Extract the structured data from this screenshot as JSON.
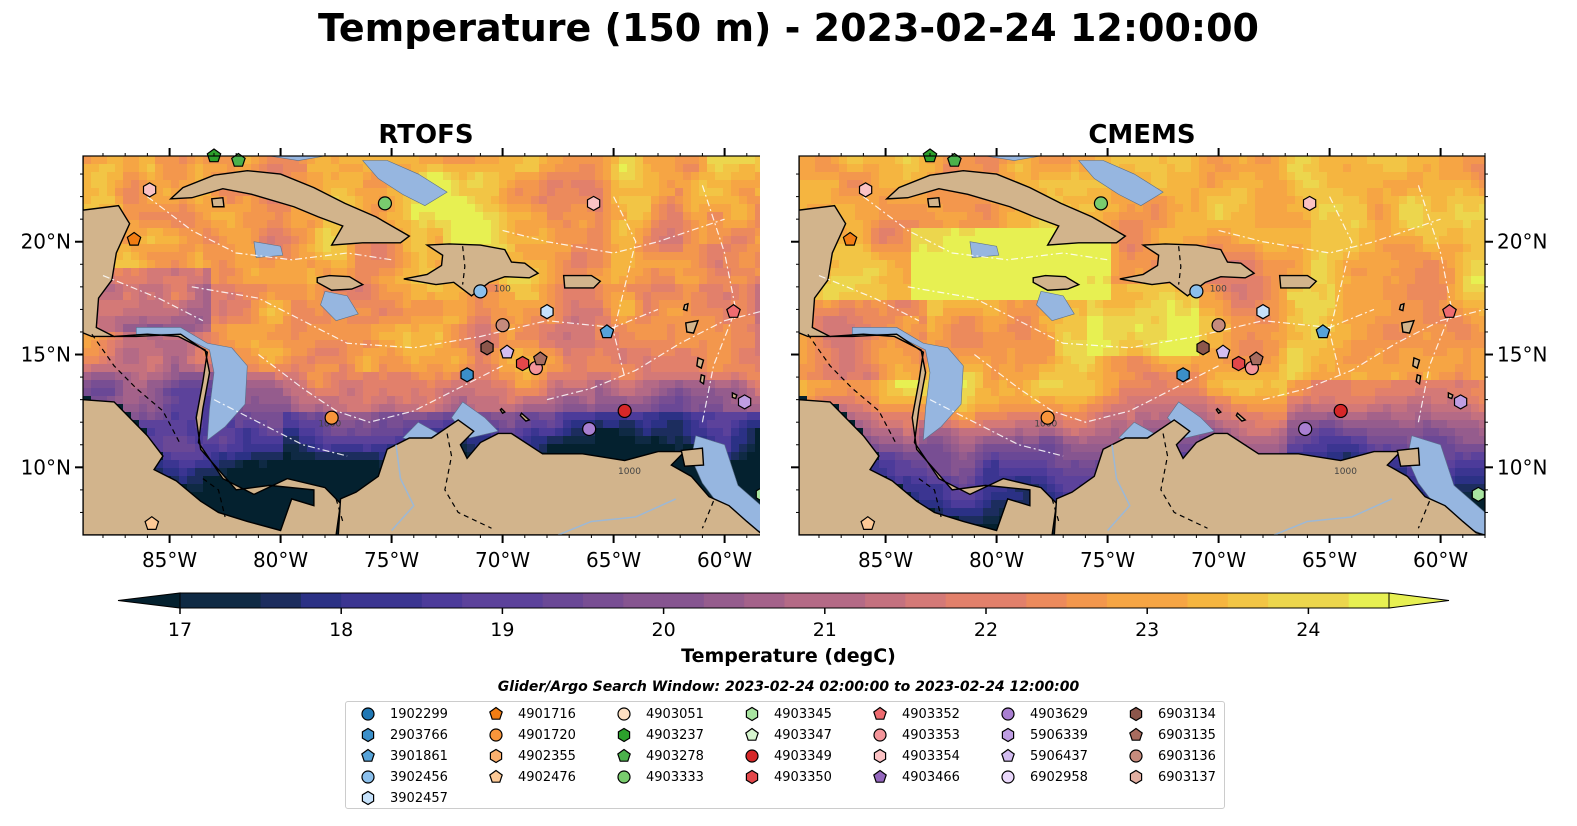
{
  "title": "Temperature (150 m) - 2023-02-24 12:00:00",
  "panels": [
    {
      "title": "RTOFS"
    },
    {
      "title": "CMEMS"
    }
  ],
  "chart_data": [
    {
      "type": "heatmap",
      "title": "RTOFS",
      "x_ticks": [
        "85°W",
        "80°W",
        "75°W",
        "70°W",
        "65°W",
        "60°W"
      ],
      "x_tick_values": [
        -85,
        -80,
        -75,
        -70,
        -65,
        -60
      ],
      "y_ticks": [
        "20°N",
        "15°N",
        "10°N"
      ],
      "y_tick_values": [
        20,
        15,
        10
      ],
      "xlim": [
        -88.9,
        -58
      ],
      "ylim": [
        7,
        23.8
      ],
      "contour_labels": [
        "1000",
        "100"
      ]
    },
    {
      "type": "heatmap",
      "title": "CMEMS",
      "x_ticks": [
        "85°W",
        "80°W",
        "75°W",
        "70°W",
        "65°W",
        "60°W"
      ],
      "x_tick_values": [
        -85,
        -80,
        -75,
        -70,
        -65,
        -60
      ],
      "y_ticks": [
        "20°N",
        "15°N",
        "10°N"
      ],
      "y_tick_values": [
        20,
        15,
        10
      ],
      "xlim": [
        -88.9,
        -58
      ],
      "ylim": [
        7,
        23.8
      ],
      "contour_labels": [
        "1000",
        "100"
      ]
    }
  ],
  "colorbar": {
    "label": "Temperature (degC)",
    "min": 16.75,
    "max": 24.5,
    "step": 0.25,
    "ticks": [
      "17",
      "18",
      "19",
      "20",
      "21",
      "22",
      "23",
      "24"
    ],
    "tick_values": [
      17,
      18,
      19,
      20,
      21,
      22,
      23,
      24
    ],
    "extend": "both",
    "colors": [
      "#04212f",
      "#0f2a44",
      "#1c2d5e",
      "#2b3185",
      "#3b3591",
      "#4c3b9a",
      "#5c429b",
      "#6a4896",
      "#784e93",
      "#865590",
      "#955c8d",
      "#a4628a",
      "#b46a86",
      "#c4717f",
      "#d47977",
      "#e2806b",
      "#ec8a5c",
      "#f3974d",
      "#f6a544",
      "#f5b540",
      "#f2c545",
      "#ecd64d",
      "#e7f052"
    ]
  },
  "legend": {
    "title": "Glider/Argo Search Window: 2023-02-24 02:00:00 to 2023-02-24 12:00:00",
    "columns": [
      [
        {
          "label": "1902299",
          "marker": "circle",
          "color": "#1f77b4"
        },
        {
          "label": "2903766",
          "marker": "hexagon",
          "color": "#3b8fc9"
        },
        {
          "label": "3901861",
          "marker": "pentagon",
          "color": "#57a3d8"
        },
        {
          "label": "3902456",
          "marker": "circle",
          "color": "#8cc0ec"
        },
        {
          "label": "3902457",
          "marker": "hexagon",
          "color": "#c6e2fb"
        }
      ],
      [
        {
          "label": "4901716",
          "marker": "pentagon",
          "color": "#f27d13"
        },
        {
          "label": "4901720",
          "marker": "circle",
          "color": "#f8953b"
        },
        {
          "label": "4902355",
          "marker": "hexagon",
          "color": "#fbb06e"
        },
        {
          "label": "4902476",
          "marker": "pentagon",
          "color": "#fdc996"
        }
      ],
      [
        {
          "label": "4903051",
          "marker": "circle",
          "color": "#fde0c3"
        },
        {
          "label": "4903237",
          "marker": "hexagon",
          "color": "#2ca02c"
        },
        {
          "label": "4903278",
          "marker": "pentagon",
          "color": "#4bb14b"
        },
        {
          "label": "4903333",
          "marker": "circle",
          "color": "#79cc6e"
        }
      ],
      [
        {
          "label": "4903345",
          "marker": "hexagon",
          "color": "#a8e4a0"
        },
        {
          "label": "4903347",
          "marker": "pentagon",
          "color": "#d7f5cf"
        },
        {
          "label": "4903349",
          "marker": "circle",
          "color": "#d62728"
        },
        {
          "label": "4903350",
          "marker": "hexagon",
          "color": "#e3474a"
        }
      ],
      [
        {
          "label": "4903352",
          "marker": "pentagon",
          "color": "#ee6b70"
        },
        {
          "label": "4903353",
          "marker": "circle",
          "color": "#f4959a"
        },
        {
          "label": "4903354",
          "marker": "hexagon",
          "color": "#fbc2c4"
        },
        {
          "label": "4903466",
          "marker": "pentagon",
          "color": "#9467bd"
        }
      ],
      [
        {
          "label": "4903629",
          "marker": "circle",
          "color": "#a97fd1"
        },
        {
          "label": "5906339",
          "marker": "hexagon",
          "color": "#bf9ee3"
        },
        {
          "label": "5906437",
          "marker": "pentagon",
          "color": "#d3bdf0"
        },
        {
          "label": "6902958",
          "marker": "circle",
          "color": "#ead8fb"
        }
      ],
      [
        {
          "label": "6903134",
          "marker": "hexagon",
          "color": "#8c564b"
        },
        {
          "label": "6903135",
          "marker": "pentagon",
          "color": "#a86c5f"
        },
        {
          "label": "6903136",
          "marker": "circle",
          "color": "#c68b7d"
        },
        {
          "label": "6903137",
          "marker": "hexagon",
          "color": "#e3b0a3"
        }
      ]
    ]
  },
  "colors": {
    "land": "#d2b48c",
    "shelf": "#96b6e0",
    "pacific_cold": "#04212f"
  }
}
